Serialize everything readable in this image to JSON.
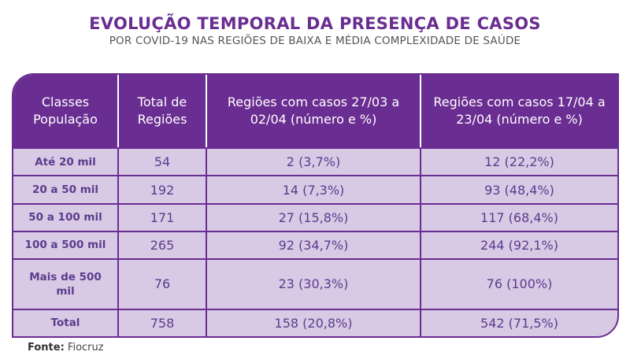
{
  "title": "EVOLUÇÃO TEMPORAL DA PRESENÇA DE CASOS",
  "subtitle": "POR COVID-19 NAS REGIÕES DE BAIXA E MÉDIA COMPLEXIDADE DE SAÚDE",
  "colors": {
    "header": "#6a2d91",
    "cell": "#d8c9e5",
    "text": "#5b3c8c"
  },
  "chart_data": {
    "type": "table",
    "columns": [
      "Classes População",
      "Total de Regiões",
      "Regiões com casos 27/03 a 02/04 (número e %)",
      "Regiões com casos 17/04 a 23/04 (número e %)"
    ],
    "rows": [
      [
        "Até 20 mil",
        "54",
        "2 (3,7%)",
        "12 (22,2%)"
      ],
      [
        "20 a 50 mil",
        "192",
        "14 (7,3%)",
        "93 (48,4%)"
      ],
      [
        "50 a 100 mil",
        "171",
        "27 (15,8%)",
        "117 (68,4%)"
      ],
      [
        "100 a 500 mil",
        "265",
        "92 (34,7%)",
        "244 (92,1%)"
      ],
      [
        "Mais de 500 mil",
        "76",
        "23 (30,3%)",
        "76 (100%)"
      ],
      [
        "Total",
        "758",
        "158 (20,8%)",
        "542 (71,5%)"
      ]
    ]
  },
  "source": {
    "label": "Fonte:",
    "value": "Fiocruz"
  }
}
